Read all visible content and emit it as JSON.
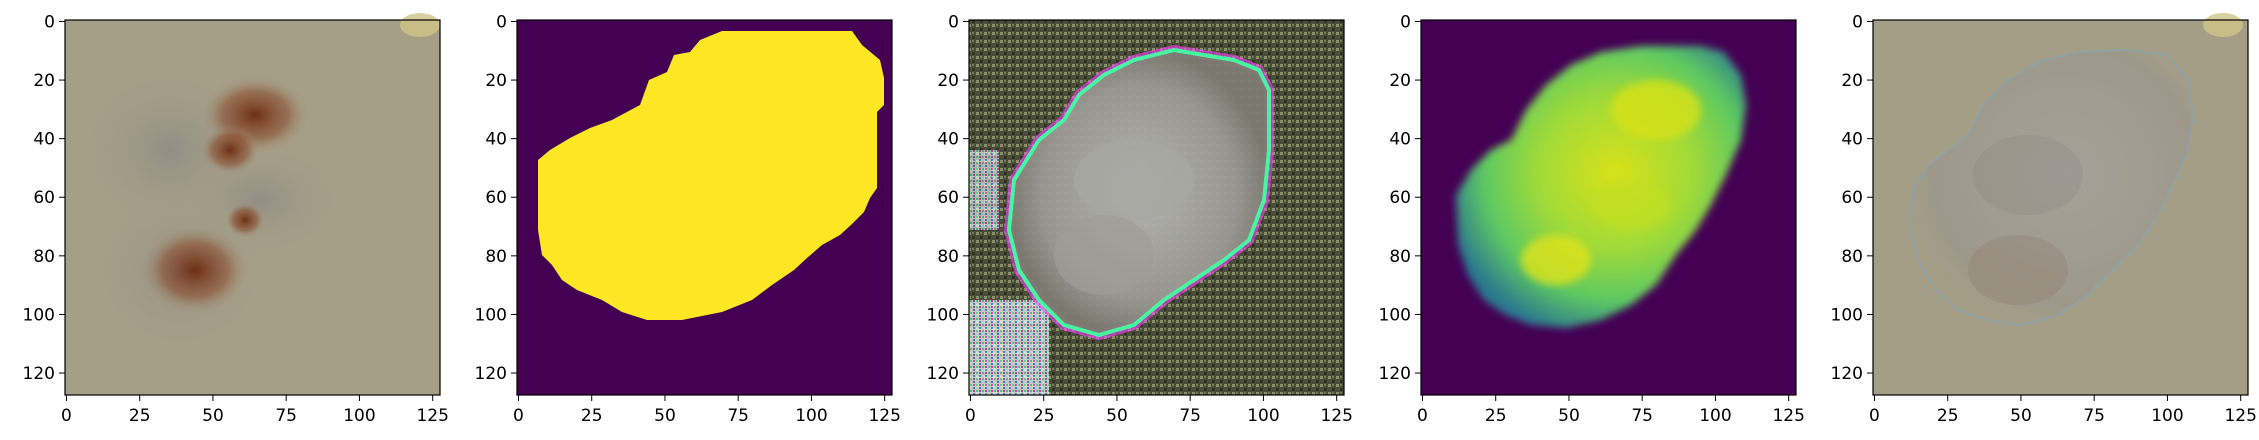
{
  "figure": {
    "panels": [
      {
        "id": "panel-1",
        "kind": "photo-original"
      },
      {
        "id": "panel-2",
        "kind": "binary-mask"
      },
      {
        "id": "panel-3",
        "kind": "generated-rgb-artifacts"
      },
      {
        "id": "panel-4",
        "kind": "heatmap-mask"
      },
      {
        "id": "panel-5",
        "kind": "blended-result"
      }
    ],
    "x_ticks": [
      "0",
      "25",
      "50",
      "75",
      "100",
      "125"
    ],
    "y_ticks": [
      "0",
      "20",
      "40",
      "60",
      "80",
      "100",
      "120"
    ],
    "x_tick_values": [
      0,
      25,
      50,
      75,
      100,
      125
    ],
    "y_tick_values": [
      0,
      20,
      40,
      60,
      80,
      100,
      120
    ],
    "axis_range": [
      -0.5,
      127.5
    ]
  },
  "colors": {
    "viridis_purple": "#440154",
    "viridis_yellow": "#fde725",
    "viridis_green": "#5ec962",
    "sand": "#a49d86",
    "rust": "#7a3a1c",
    "gray_blob": "#9a9a96"
  }
}
